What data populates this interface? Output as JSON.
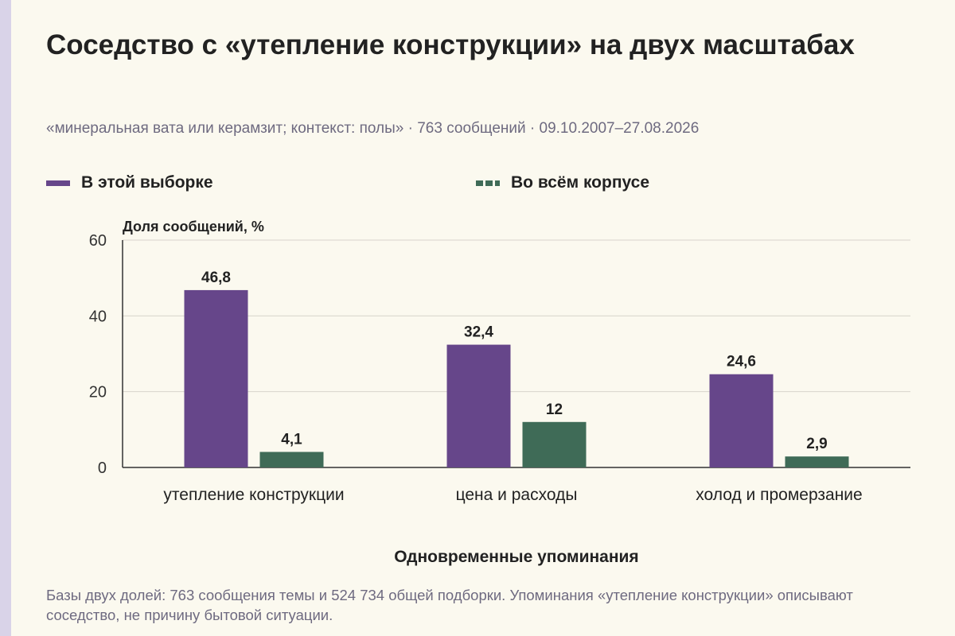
{
  "title": "Соседство с «утепление конструкции» на двух масштабах",
  "subtitle": "«минеральная вата или керамзит; контекст: полы» · 763 сообщений · 09.10.2007–27.08.2026",
  "legend": {
    "sample": "В этой выборке",
    "corpus": "Во всём корпусе"
  },
  "footnote": "Базы двух долей: 763 сообщения темы и 524 734 общей подборки. Упоминания «утепление конструкции» описывают соседство, не причину бытовой ситуации.",
  "colors": {
    "sample": "#66468a",
    "corpus": "#3f6b57",
    "grid": "#d8d4cc",
    "axis": "#333333"
  },
  "chart_data": {
    "type": "bar",
    "categories": [
      "утепление конструкции",
      "цена и расходы",
      "холод и промерзание"
    ],
    "series": [
      {
        "name": "В этой выборке",
        "values": [
          46.8,
          32.4,
          24.6
        ],
        "labels": [
          "46,8",
          "32,4",
          "24,6"
        ]
      },
      {
        "name": "Во всём корпусе",
        "values": [
          4.1,
          12,
          2.9
        ],
        "labels": [
          "4,1",
          "12",
          "2,9"
        ]
      }
    ],
    "xlabel": "Одновременные упоминания",
    "ylabel": "Доля сообщений, %",
    "ylim": [
      0,
      60
    ],
    "yticks": [
      0,
      20,
      40,
      60
    ],
    "grid": true
  }
}
